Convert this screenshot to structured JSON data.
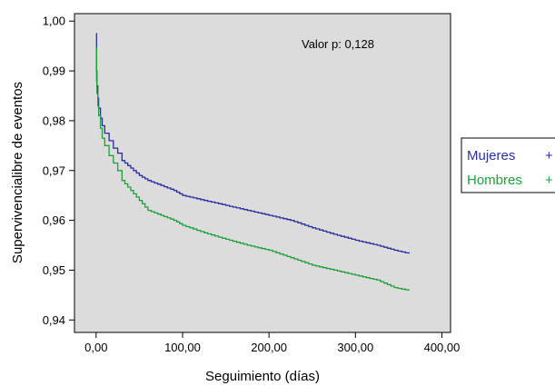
{
  "chart_data": {
    "type": "line",
    "xlabel": "Seguimiento (días)",
    "ylabel": "Supervivencialibre de eventos",
    "xlim": [
      -25,
      410
    ],
    "ylim": [
      0.9375,
      1.0015
    ],
    "xticks": [
      0,
      100,
      200,
      300,
      400
    ],
    "xtick_labels": [
      "0,00",
      "100,00",
      "200,00",
      "300,00",
      "400,00"
    ],
    "yticks": [
      0.94,
      0.95,
      0.96,
      0.97,
      0.98,
      0.99,
      1.0
    ],
    "ytick_labels": [
      "0,94",
      "0,95",
      "0,96",
      "0,97",
      "0,98",
      "0,99",
      "1,00"
    ],
    "annotation": "Valor p: 0,128",
    "legend_position": "right-outside",
    "plot_background": "#dcdcdc",
    "series": [
      {
        "name": "Mujeres",
        "legend_label": "Mujeres",
        "legend_marker": "+",
        "color": "#2a2f9f",
        "x": [
          0,
          0.5,
          1,
          2,
          3,
          5,
          7,
          10,
          15,
          20,
          25,
          30,
          40,
          50,
          60,
          75,
          90,
          100,
          125,
          150,
          175,
          200,
          225,
          250,
          275,
          300,
          325,
          345,
          362
        ],
        "y": [
          0.9975,
          0.99,
          0.987,
          0.9845,
          0.9825,
          0.9805,
          0.979,
          0.9775,
          0.976,
          0.9745,
          0.9735,
          0.972,
          0.9705,
          0.969,
          0.968,
          0.967,
          0.966,
          0.965,
          0.964,
          0.963,
          0.962,
          0.961,
          0.96,
          0.9585,
          0.9572,
          0.956,
          0.955,
          0.954,
          0.9533
        ]
      },
      {
        "name": "Hombres",
        "legend_label": "Hombres",
        "legend_marker": "+",
        "color": "#1fa03c",
        "x": [
          0,
          0.5,
          1,
          2,
          3,
          5,
          7,
          10,
          15,
          20,
          25,
          30,
          40,
          50,
          60,
          75,
          90,
          100,
          125,
          150,
          175,
          200,
          225,
          250,
          275,
          300,
          325,
          345,
          362
        ],
        "y": [
          0.9945,
          0.988,
          0.9855,
          0.983,
          0.981,
          0.9785,
          0.9765,
          0.975,
          0.973,
          0.9715,
          0.97,
          0.968,
          0.966,
          0.964,
          0.962,
          0.961,
          0.96,
          0.959,
          0.9575,
          0.9562,
          0.955,
          0.954,
          0.9525,
          0.951,
          0.95,
          0.949,
          0.948,
          0.9465,
          0.9459
        ]
      }
    ]
  }
}
